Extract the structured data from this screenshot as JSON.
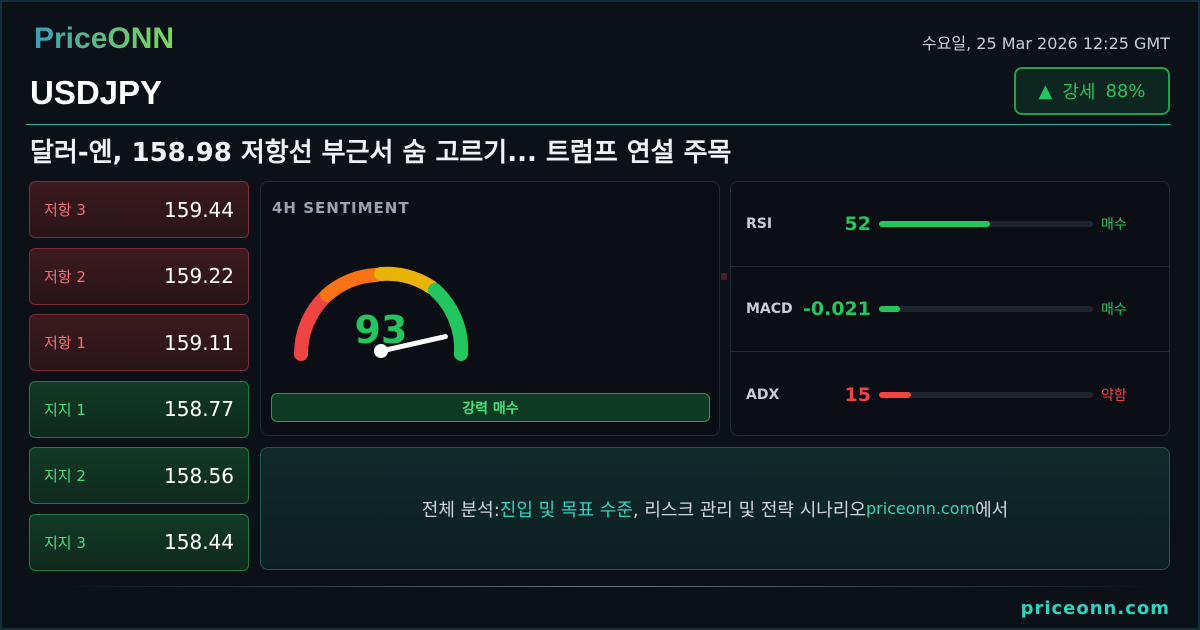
{
  "brand": {
    "logo": "PriceONN",
    "footer_site": "priceonn.com"
  },
  "header": {
    "symbol": "USDJPY",
    "datetime": "수요일, 25 Mar 2026 12:25 GMT",
    "headline": "달러-엔, 158.98 저항선 부근서 숨 고르기... 트럼프 연설 주목"
  },
  "trend_badge": {
    "icon": "triangle-up-icon",
    "arrow": "▲",
    "label": "강세",
    "percent": "88%",
    "color": "#22c55e"
  },
  "levels": [
    {
      "name": "저항 3",
      "value": "159.44",
      "type": "resistance"
    },
    {
      "name": "저항 2",
      "value": "159.22",
      "type": "resistance"
    },
    {
      "name": "저항 1",
      "value": "159.11",
      "type": "resistance"
    },
    {
      "name": "지지 1",
      "value": "158.77",
      "type": "support"
    },
    {
      "name": "지지 2",
      "value": "158.56",
      "type": "support"
    },
    {
      "name": "지지 3",
      "value": "158.44",
      "type": "support"
    }
  ],
  "sentiment": {
    "title": "4H SENTIMENT",
    "value": 93,
    "value_text": "93",
    "label": "강력 매수",
    "scale_max": 100
  },
  "indicators": [
    {
      "name": "RSI",
      "value": "52",
      "level": 52,
      "status": "매수",
      "color": "#22c55e"
    },
    {
      "name": "MACD",
      "value": "-0.021",
      "level": 10,
      "status": "매수",
      "color": "#22c55e"
    },
    {
      "name": "ADX",
      "value": "15",
      "level": 15,
      "status": "약함",
      "color": "#ef4444"
    }
  ],
  "cta": {
    "prefix": "전체 분석: ",
    "highlight": "진입 및 목표 수준",
    "middle": ", 리스크 관리 및 전략 시나리오 ",
    "site": "priceonn.com",
    "suffix": "에서"
  }
}
